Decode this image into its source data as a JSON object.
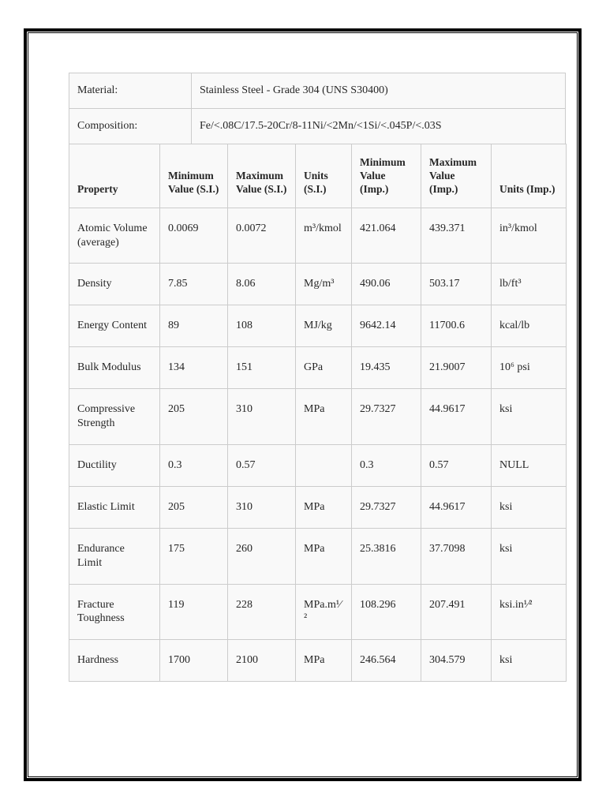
{
  "document": {
    "material_label": "Material:",
    "material_value": "Stainless Steel - Grade 304 (UNS S30400)",
    "composition_label": "Composition:",
    "composition_value": "Fe/<.08C/17.5-20Cr/8-11Ni/<2Mn/<1Si/<.045P/<.03S"
  },
  "table": {
    "headers": [
      "Property",
      "Minimum Value (S.I.)",
      "Maximum Value (S.I.)",
      "Units (S.I.)",
      "Minimum Value (Imp.)",
      "Maximum Value (Imp.)",
      "Units (Imp.)"
    ],
    "rows": [
      [
        "Atomic Volume (average)",
        "0.0069",
        "0.0072",
        "m³/kmol",
        "421.064",
        "439.371",
        "in³/kmol"
      ],
      [
        "Density",
        "7.85",
        "8.06",
        "Mg/m³",
        "490.06",
        "503.17",
        "lb/ft³"
      ],
      [
        "Energy Content",
        "89",
        "108",
        "MJ/kg",
        "9642.14",
        "11700.6",
        "kcal/lb"
      ],
      [
        "Bulk Modulus",
        "134",
        "151",
        "GPa",
        "19.435",
        "21.9007",
        "10⁶ psi"
      ],
      [
        "Compressive Strength",
        "205",
        "310",
        "MPa",
        "29.7327",
        "44.9617",
        "ksi"
      ],
      [
        "Ductility",
        "0.3",
        "0.57",
        "",
        "0.3",
        "0.57",
        "NULL"
      ],
      [
        "Elastic Limit",
        "205",
        "310",
        "MPa",
        "29.7327",
        "44.9617",
        "ksi"
      ],
      [
        "Endurance Limit",
        "175",
        "260",
        "MPa",
        "25.3816",
        "37.7098",
        "ksi"
      ],
      [
        "Fracture Toughness",
        "119",
        "228",
        "MPa.m¹⁄²",
        "108.296",
        "207.491",
        "ksi.in¹⁄²"
      ],
      [
        "Hardness",
        "1700",
        "2100",
        "MPa",
        "246.564",
        "304.579",
        "ksi"
      ]
    ]
  }
}
